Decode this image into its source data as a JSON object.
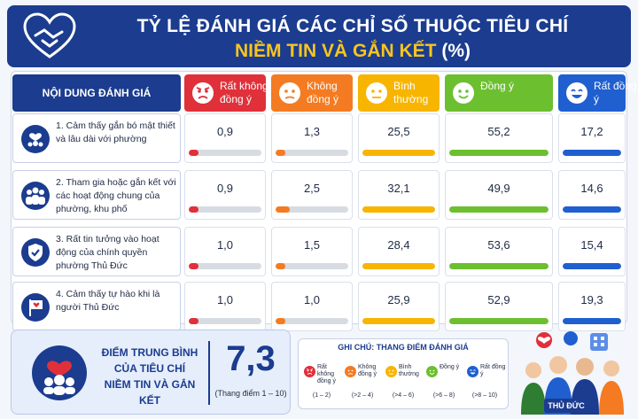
{
  "header": {
    "title_line1": "TỶ LỆ ĐÁNH GIÁ CÁC CHỈ SỐ THUỘC TIÊU CHÍ",
    "title_line2_highlight": "NIỀM TIN VÀ GẮN KẾT",
    "title_line2_suffix": "(%)"
  },
  "columns": {
    "content": "NỘI DUNG ĐÁNH GIÁ",
    "levels": [
      {
        "label": "Rất không đồng ý",
        "color": "#e0303a",
        "face": "angry-face-icon"
      },
      {
        "label": "Không đồng ý",
        "color": "#f47b21",
        "face": "sad-face-icon"
      },
      {
        "label": "Bình thường",
        "color": "#f7b500",
        "face": "neutral-face-icon"
      },
      {
        "label": "Đồng ý",
        "color": "#6cbf2f",
        "face": "smile-face-icon"
      },
      {
        "label": "Rất đồng ý",
        "color": "#1f5fd0",
        "face": "happy-face-icon"
      }
    ]
  },
  "chart_data": {
    "type": "table",
    "title": "TỶ LỆ ĐÁNH GIÁ CÁC CHỈ SỐ THUỘC TIÊU CHÍ NIỀM TIN VÀ GẮN KẾT (%)",
    "categories": [
      "Rất không đồng ý",
      "Không đồng ý",
      "Bình thường",
      "Đồng ý",
      "Rất đồng ý"
    ],
    "rows": [
      {
        "label": "1. Cảm thấy gắn bó mật thiết và lâu dài với phường",
        "icon": "community-heart-icon",
        "values": [
          "0,9",
          "1,3",
          "25,5",
          "55,2",
          "17,2"
        ],
        "numeric": [
          0.9,
          1.3,
          25.5,
          55.2,
          17.2
        ]
      },
      {
        "label": "2. Tham gia hoặc gắn kết với các hoạt động chung của phường, khu phố",
        "icon": "group-people-icon",
        "values": [
          "0,9",
          "2,5",
          "32,1",
          "49,9",
          "14,6"
        ],
        "numeric": [
          0.9,
          2.5,
          32.1,
          49.9,
          14.6
        ]
      },
      {
        "label": "3. Rất tin tưởng vào hoạt động của chính quyền phường Thủ Đức",
        "icon": "shield-check-icon",
        "values": [
          "1,0",
          "1,5",
          "28,4",
          "53,6",
          "15,4"
        ],
        "numeric": [
          1.0,
          1.5,
          28.4,
          53.6,
          15.4
        ]
      },
      {
        "label": "4. Cảm thấy tự hào khi là người Thủ Đức",
        "icon": "heart-flag-icon",
        "values": [
          "1,0",
          "1,0",
          "25,9",
          "52,9",
          "19,3"
        ],
        "numeric": [
          1.0,
          1.0,
          25.9,
          52.9,
          19.3
        ]
      }
    ]
  },
  "average": {
    "label_line1": "ĐIỂM TRUNG BÌNH",
    "label_line2": "CỦA TIÊU CHÍ",
    "label_line3": "NIỀM TIN VÀ GẮN KẾT",
    "score": "7,3",
    "scale": "(Thang điểm 1 – 10)"
  },
  "legend": {
    "title": "GHI CHÚ: THANG ĐIỂM ĐÁNH GIÁ",
    "items": [
      {
        "label": "Rất không đồng ý",
        "range": "(1 – 2)",
        "color": "#e0303a"
      },
      {
        "label": "Không đồng ý",
        "range": "(>2 – 4)",
        "color": "#f47b21"
      },
      {
        "label": "Bình thường",
        "range": "(>4 – 6)",
        "color": "#f7b500"
      },
      {
        "label": "Đồng ý",
        "range": "(>6 – 8)",
        "color": "#6cbf2f"
      },
      {
        "label": "Rất đồng ý",
        "range": "(>8 – 10)",
        "color": "#1f5fd0"
      }
    ]
  },
  "footer_tag": "THỦ ĐỨC"
}
